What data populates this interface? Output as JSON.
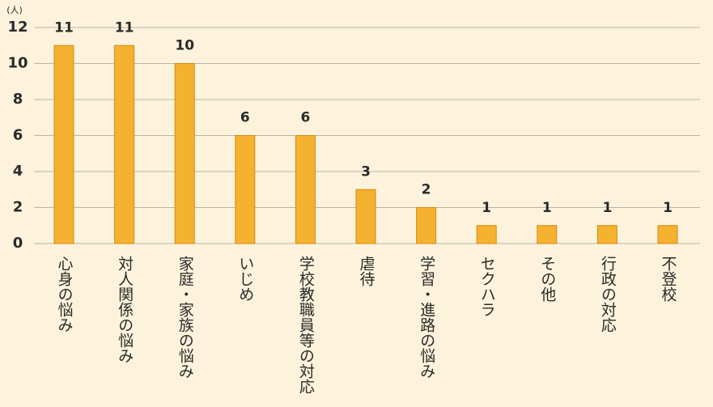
{
  "chart_data": {
    "type": "bar",
    "unit_label": "(人)",
    "categories": [
      "心身の悩み",
      "対人関係の悩み",
      "家庭・家族の悩み",
      "いじめ",
      "学校教職員等の対応",
      "虐待",
      "学習・進路の悩み",
      "セクハラ",
      "その他",
      "行政の対応",
      "不登校"
    ],
    "values": [
      11,
      11,
      10,
      6,
      6,
      3,
      2,
      1,
      1,
      1,
      1
    ],
    "color": "#f5b130",
    "ylim": [
      0,
      12
    ],
    "yticks": [
      0,
      2,
      4,
      6,
      8,
      10,
      12
    ],
    "grid": true
  }
}
